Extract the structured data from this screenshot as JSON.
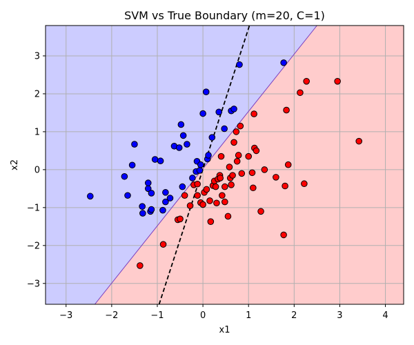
{
  "chart_data": {
    "type": "scatter",
    "title": "SVM vs True Boundary (m=20, C=1)",
    "xlabel": "x1",
    "ylabel": "x2",
    "xlim": [
      -3.45,
      4.4
    ],
    "ylim": [
      -3.55,
      3.8
    ],
    "xticks": [
      -3,
      -2,
      -1,
      0,
      1,
      2,
      3,
      4
    ],
    "yticks": [
      -3,
      -2,
      -1,
      0,
      1,
      2,
      3
    ],
    "grid": true,
    "background_regions": [
      {
        "class": "blue",
        "color": "#ccccff",
        "side": "above SVM boundary"
      },
      {
        "class": "red",
        "color": "#ffcccc",
        "side": "below SVM boundary"
      }
    ],
    "svm_boundary": {
      "color": "#7b3fbf",
      "points": [
        [
          -2.37,
          -3.55
        ],
        [
          2.5,
          3.8
        ]
      ]
    },
    "true_boundary": {
      "color": "#000000",
      "style": "dashed",
      "points": [
        [
          -0.96,
          -3.55
        ],
        [
          1.02,
          3.8
        ]
      ]
    },
    "series": [
      {
        "color": "#0000ff",
        "points": [
          [
            -2.47,
            -0.7
          ],
          [
            -1.65,
            -0.68
          ],
          [
            -1.72,
            -0.18
          ],
          [
            -1.55,
            0.12
          ],
          [
            -1.5,
            0.67
          ],
          [
            -1.33,
            -0.97
          ],
          [
            -1.32,
            -1.15
          ],
          [
            -1.2,
            -0.5
          ],
          [
            -1.2,
            -0.35
          ],
          [
            -1.15,
            -1.1
          ],
          [
            -1.13,
            -1.05
          ],
          [
            -1.13,
            -0.62
          ],
          [
            -1.05,
            0.27
          ],
          [
            -0.93,
            0.23
          ],
          [
            -0.88,
            -1.07
          ],
          [
            -0.82,
            -0.6
          ],
          [
            -0.82,
            -0.85
          ],
          [
            -0.72,
            -0.75
          ],
          [
            -0.63,
            0.62
          ],
          [
            -0.52,
            0.58
          ],
          [
            -0.48,
            1.19
          ],
          [
            -0.43,
            0.9
          ],
          [
            -0.45,
            -0.45
          ],
          [
            -0.35,
            0.67
          ],
          [
            -0.23,
            -0.22
          ],
          [
            -0.15,
            -0.05
          ],
          [
            -0.13,
            0.22
          ],
          [
            -0.07,
            -0.02
          ],
          [
            -0.05,
            0.13
          ],
          [
            0.0,
            1.48
          ],
          [
            0.07,
            2.05
          ],
          [
            0.1,
            0.28
          ],
          [
            0.12,
            0.38
          ],
          [
            0.2,
            0.85
          ],
          [
            0.35,
            1.52
          ],
          [
            0.47,
            1.08
          ],
          [
            0.62,
            1.55
          ],
          [
            0.68,
            1.6
          ],
          [
            0.8,
            2.77
          ],
          [
            1.77,
            2.82
          ]
        ]
      },
      {
        "color": "#ff0000",
        "points": [
          [
            -1.38,
            -2.53
          ],
          [
            -0.87,
            -1.97
          ],
          [
            -0.55,
            -1.32
          ],
          [
            -0.5,
            -1.3
          ],
          [
            -0.4,
            -0.68
          ],
          [
            -0.28,
            -0.95
          ],
          [
            -0.2,
            -0.4
          ],
          [
            -0.12,
            -0.38
          ],
          [
            -0.12,
            -0.68
          ],
          [
            -0.05,
            -0.87
          ],
          [
            0.0,
            -0.92
          ],
          [
            0.03,
            -0.6
          ],
          [
            0.08,
            -0.52
          ],
          [
            0.15,
            -0.82
          ],
          [
            0.17,
            -1.37
          ],
          [
            0.22,
            -0.42
          ],
          [
            0.25,
            -0.3
          ],
          [
            0.28,
            -0.45
          ],
          [
            0.3,
            -0.88
          ],
          [
            0.33,
            -0.25
          ],
          [
            0.37,
            -0.15
          ],
          [
            0.38,
            -0.22
          ],
          [
            0.4,
            0.35
          ],
          [
            0.42,
            -0.68
          ],
          [
            0.48,
            -0.45
          ],
          [
            0.48,
            -0.85
          ],
          [
            0.55,
            -1.23
          ],
          [
            0.58,
            0.07
          ],
          [
            0.6,
            -0.22
          ],
          [
            0.62,
            -0.4
          ],
          [
            0.65,
            -0.15
          ],
          [
            0.68,
            0.72
          ],
          [
            0.73,
            1.0
          ],
          [
            0.75,
            0.22
          ],
          [
            0.78,
            0.38
          ],
          [
            0.82,
            1.15
          ],
          [
            0.85,
            -0.1
          ],
          [
            1.0,
            0.35
          ],
          [
            1.08,
            -0.08
          ],
          [
            1.1,
            -0.48
          ],
          [
            1.12,
            1.47
          ],
          [
            1.13,
            0.57
          ],
          [
            1.17,
            0.5
          ],
          [
            1.27,
            -1.1
          ],
          [
            1.35,
            0.0
          ],
          [
            1.6,
            -0.2
          ],
          [
            1.77,
            -1.72
          ],
          [
            1.8,
            -0.43
          ],
          [
            1.83,
            1.57
          ],
          [
            1.87,
            0.13
          ],
          [
            2.13,
            2.03
          ],
          [
            2.22,
            -0.37
          ],
          [
            2.27,
            2.33
          ],
          [
            2.95,
            2.33
          ],
          [
            3.42,
            0.75
          ]
        ]
      }
    ]
  }
}
